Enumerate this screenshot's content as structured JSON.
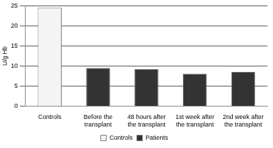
{
  "chart_data": {
    "type": "bar",
    "y_label": "U/g Hb",
    "categories": [
      "Controls",
      "Before the transplant",
      "48 hours after the transplant",
      "1st week after the transplant",
      "2nd week after the transplant"
    ],
    "series": [
      {
        "name": "Controls",
        "color": "#f4f4f4",
        "values": [
          24.5,
          null,
          null,
          null,
          null
        ]
      },
      {
        "name": "Patients",
        "color": "#333333",
        "values": [
          null,
          9.5,
          9.2,
          8.1,
          8.5
        ]
      }
    ],
    "ylim": [
      0,
      25
    ],
    "yticks": [
      0,
      5,
      10,
      15,
      20,
      25
    ],
    "grid": true,
    "legend": "bottom"
  }
}
